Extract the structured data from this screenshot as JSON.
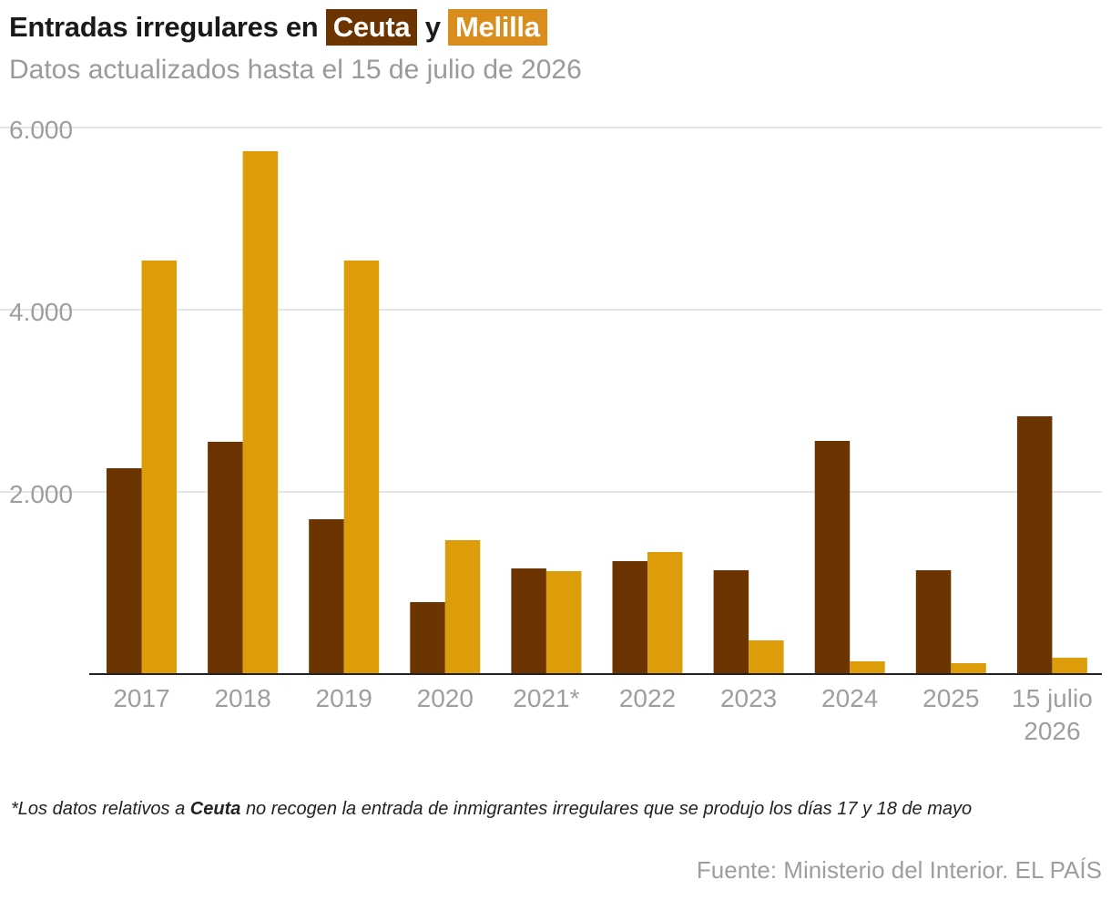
{
  "header": {
    "title_prefix": "Entradas irregulares en",
    "title_ceuta": "Ceuta",
    "title_conjunction": "y",
    "title_melilla": "Melilla",
    "subtitle": "Datos actualizados hasta el 15 de julio de 2026"
  },
  "chart_data": {
    "type": "bar",
    "categories": [
      "2017",
      "2018",
      "2019",
      "2020",
      "2021*",
      "2022",
      "2023",
      "2024",
      "2025",
      "15 julio 2026"
    ],
    "series": [
      {
        "name": "Ceuta",
        "color": "#6b3400",
        "values": [
          2260,
          2550,
          1700,
          790,
          1160,
          1240,
          1140,
          2560,
          1140,
          2830
        ]
      },
      {
        "name": "Melilla",
        "color": "#dd9c09",
        "values": [
          4540,
          5740,
          4540,
          1470,
          1130,
          1340,
          370,
          140,
          120,
          180
        ]
      }
    ],
    "y_ticks": [
      "2.000",
      "4.000",
      "6.000"
    ],
    "y_tick_values": [
      2000,
      4000,
      6000
    ],
    "ylim": [
      0,
      6000
    ],
    "grid": true,
    "legend": "title"
  },
  "footnote": {
    "prefix": "*Los datos relativos a",
    "emphasis": "Ceuta",
    "suffix": "no recogen la entrada de inmigrantes irregulares que se produjo los días 17 y 18 de mayo"
  },
  "source": "Fuente: Ministerio del Interior. EL PAÍS"
}
